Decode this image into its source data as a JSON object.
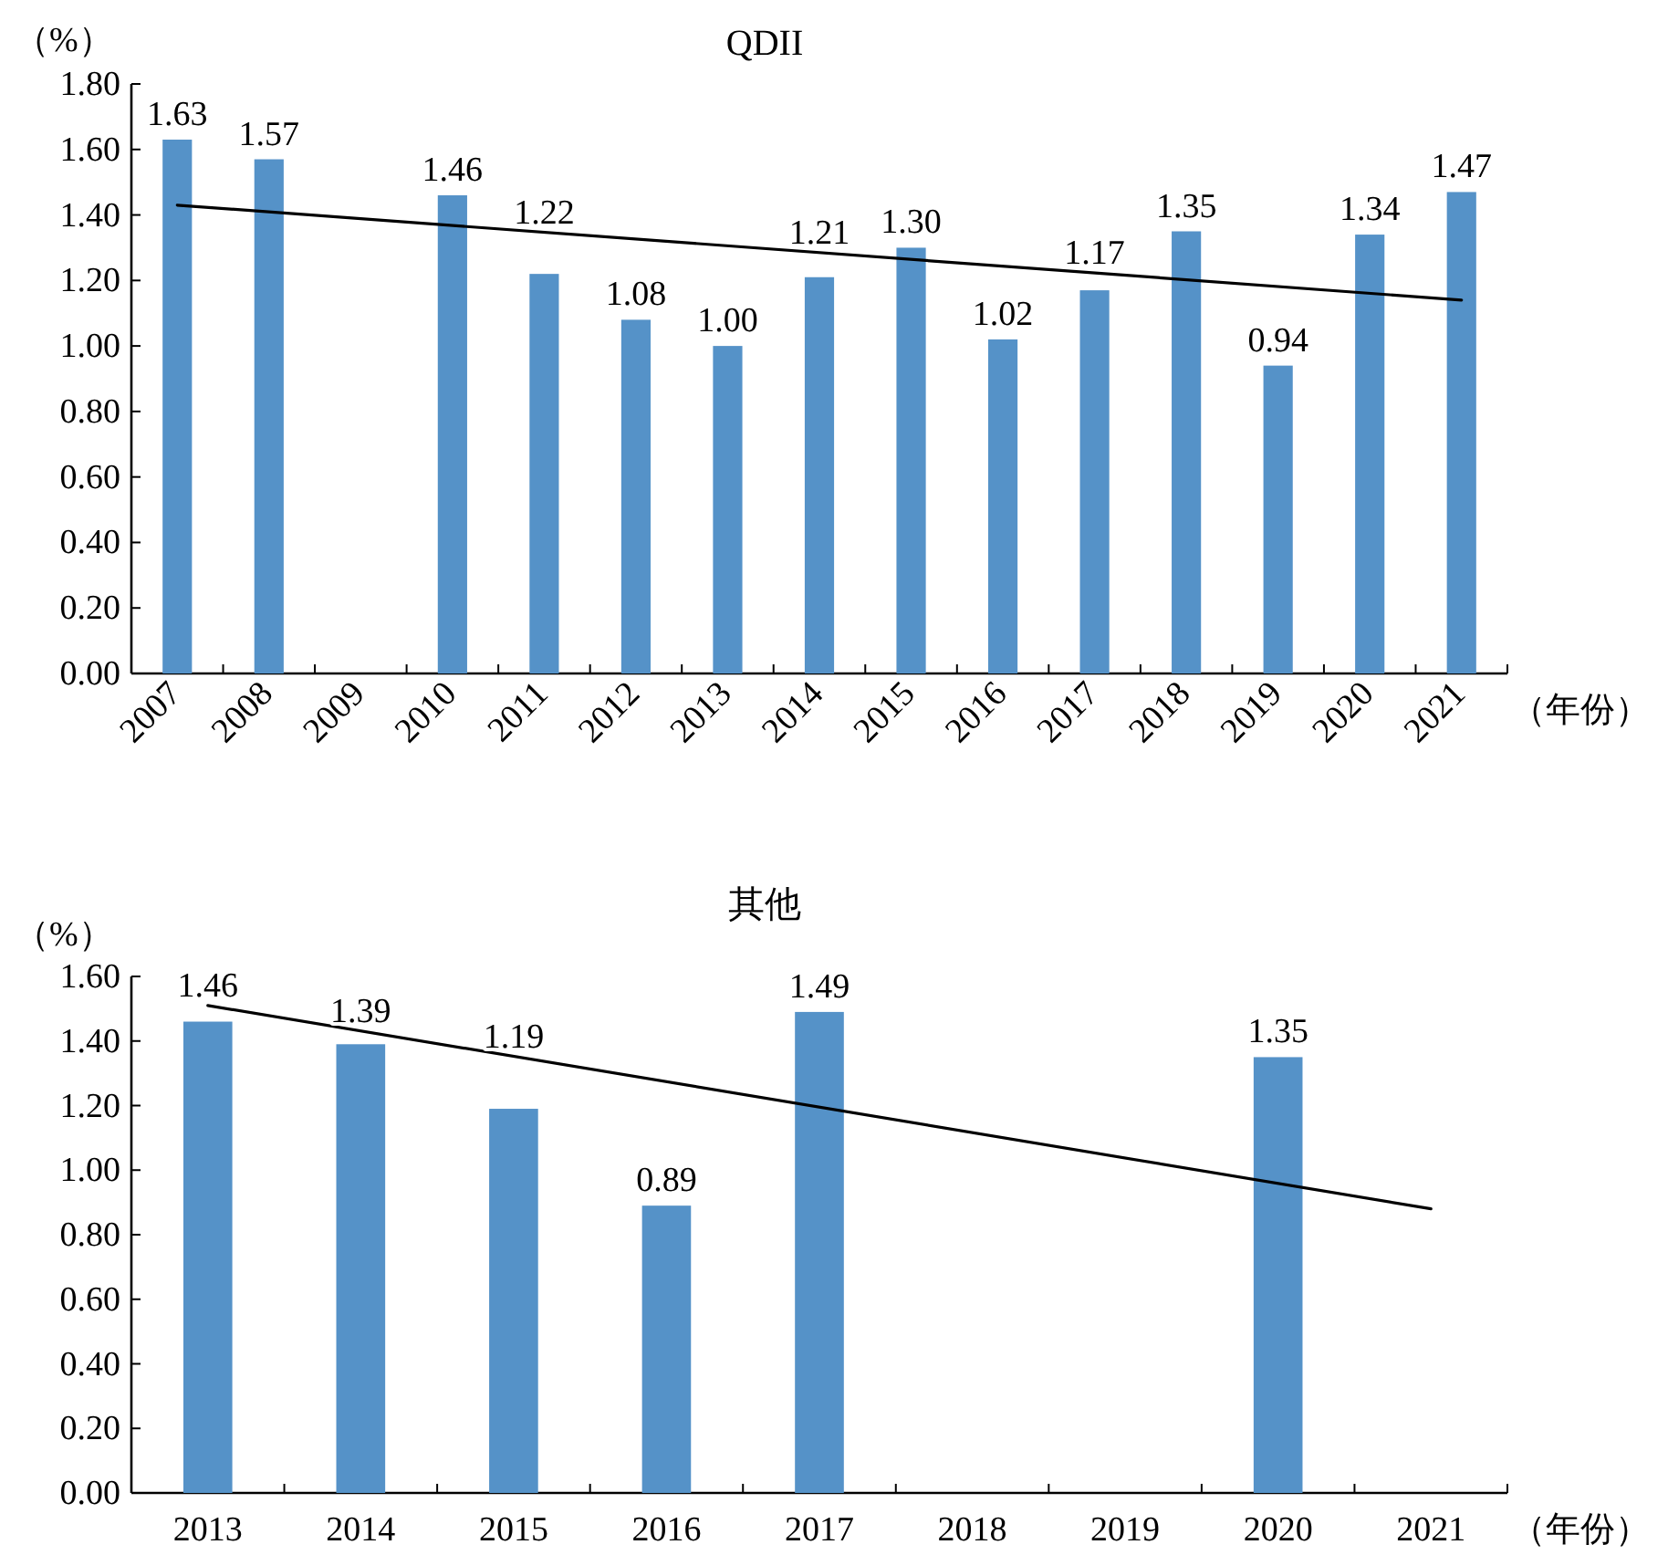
{
  "chart_data": [
    {
      "type": "bar",
      "title": "QDII",
      "ylabel": "（%）",
      "xlabel": "（年份）",
      "categories": [
        "2007",
        "2008",
        "2009",
        "2010",
        "2011",
        "2012",
        "2013",
        "2014",
        "2015",
        "2016",
        "2017",
        "2018",
        "2019",
        "2020",
        "2021"
      ],
      "series": [
        {
          "color": "#5592c8",
          "values": [
            1.63,
            1.57,
            null,
            1.46,
            1.22,
            1.08,
            1.0,
            1.21,
            1.3,
            1.02,
            1.17,
            1.35,
            0.94,
            1.34,
            1.47
          ],
          "value_labels": [
            "1.63",
            "1.57",
            null,
            "1.46",
            "1.22",
            "1.08",
            "1.00",
            "1.21",
            "1.30",
            "1.02",
            "1.17",
            "1.35",
            "0.94",
            "1.34",
            "1.47"
          ]
        },
        {
          "type": "line",
          "color": "#000000",
          "values": [
            1.43,
            null,
            null,
            null,
            null,
            null,
            null,
            null,
            null,
            null,
            null,
            null,
            null,
            null,
            1.14
          ]
        }
      ],
      "ylim": [
        0,
        1.8
      ],
      "yticks": [
        {
          "value": 0,
          "label": "0.00"
        },
        {
          "value": 0.2,
          "label": "0.20"
        },
        {
          "value": 0.4,
          "label": "0.40"
        },
        {
          "value": 0.6,
          "label": "0.60"
        },
        {
          "value": 0.8,
          "label": "0.80"
        },
        {
          "value": 1.0,
          "label": "1.00"
        },
        {
          "value": 1.2,
          "label": "1.20"
        },
        {
          "value": 1.4,
          "label": "1.40"
        },
        {
          "value": 1.6,
          "label": "1.60"
        },
        {
          "value": 1.8,
          "label": "1.80"
        }
      ],
      "grid": false
    },
    {
      "type": "bar",
      "title": "其他",
      "ylabel": "（%）",
      "xlabel": "（年份）",
      "categories": [
        "2013",
        "2014",
        "2015",
        "2016",
        "2017",
        "2018",
        "2019",
        "2020",
        "2021"
      ],
      "series": [
        {
          "color": "#5592c8",
          "values": [
            1.46,
            1.39,
            1.19,
            0.89,
            1.49,
            null,
            null,
            1.35,
            null
          ],
          "value_labels": [
            "1.46",
            "1.39",
            "1.19",
            "0.89",
            "1.49",
            null,
            null,
            "1.35",
            null
          ]
        },
        {
          "type": "line",
          "color": "#000000",
          "values": [
            1.51,
            null,
            null,
            null,
            null,
            null,
            null,
            null,
            0.88
          ]
        }
      ],
      "ylim": [
        0,
        1.6
      ],
      "yticks": [
        {
          "value": 0,
          "label": "0.00"
        },
        {
          "value": 0.2,
          "label": "0.20"
        },
        {
          "value": 0.4,
          "label": "0.40"
        },
        {
          "value": 0.6,
          "label": "0.60"
        },
        {
          "value": 0.8,
          "label": "0.80"
        },
        {
          "value": 1.0,
          "label": "1.00"
        },
        {
          "value": 1.2,
          "label": "1.20"
        },
        {
          "value": 1.4,
          "label": "1.40"
        },
        {
          "value": 1.6,
          "label": "1.60"
        }
      ],
      "grid": false
    }
  ]
}
